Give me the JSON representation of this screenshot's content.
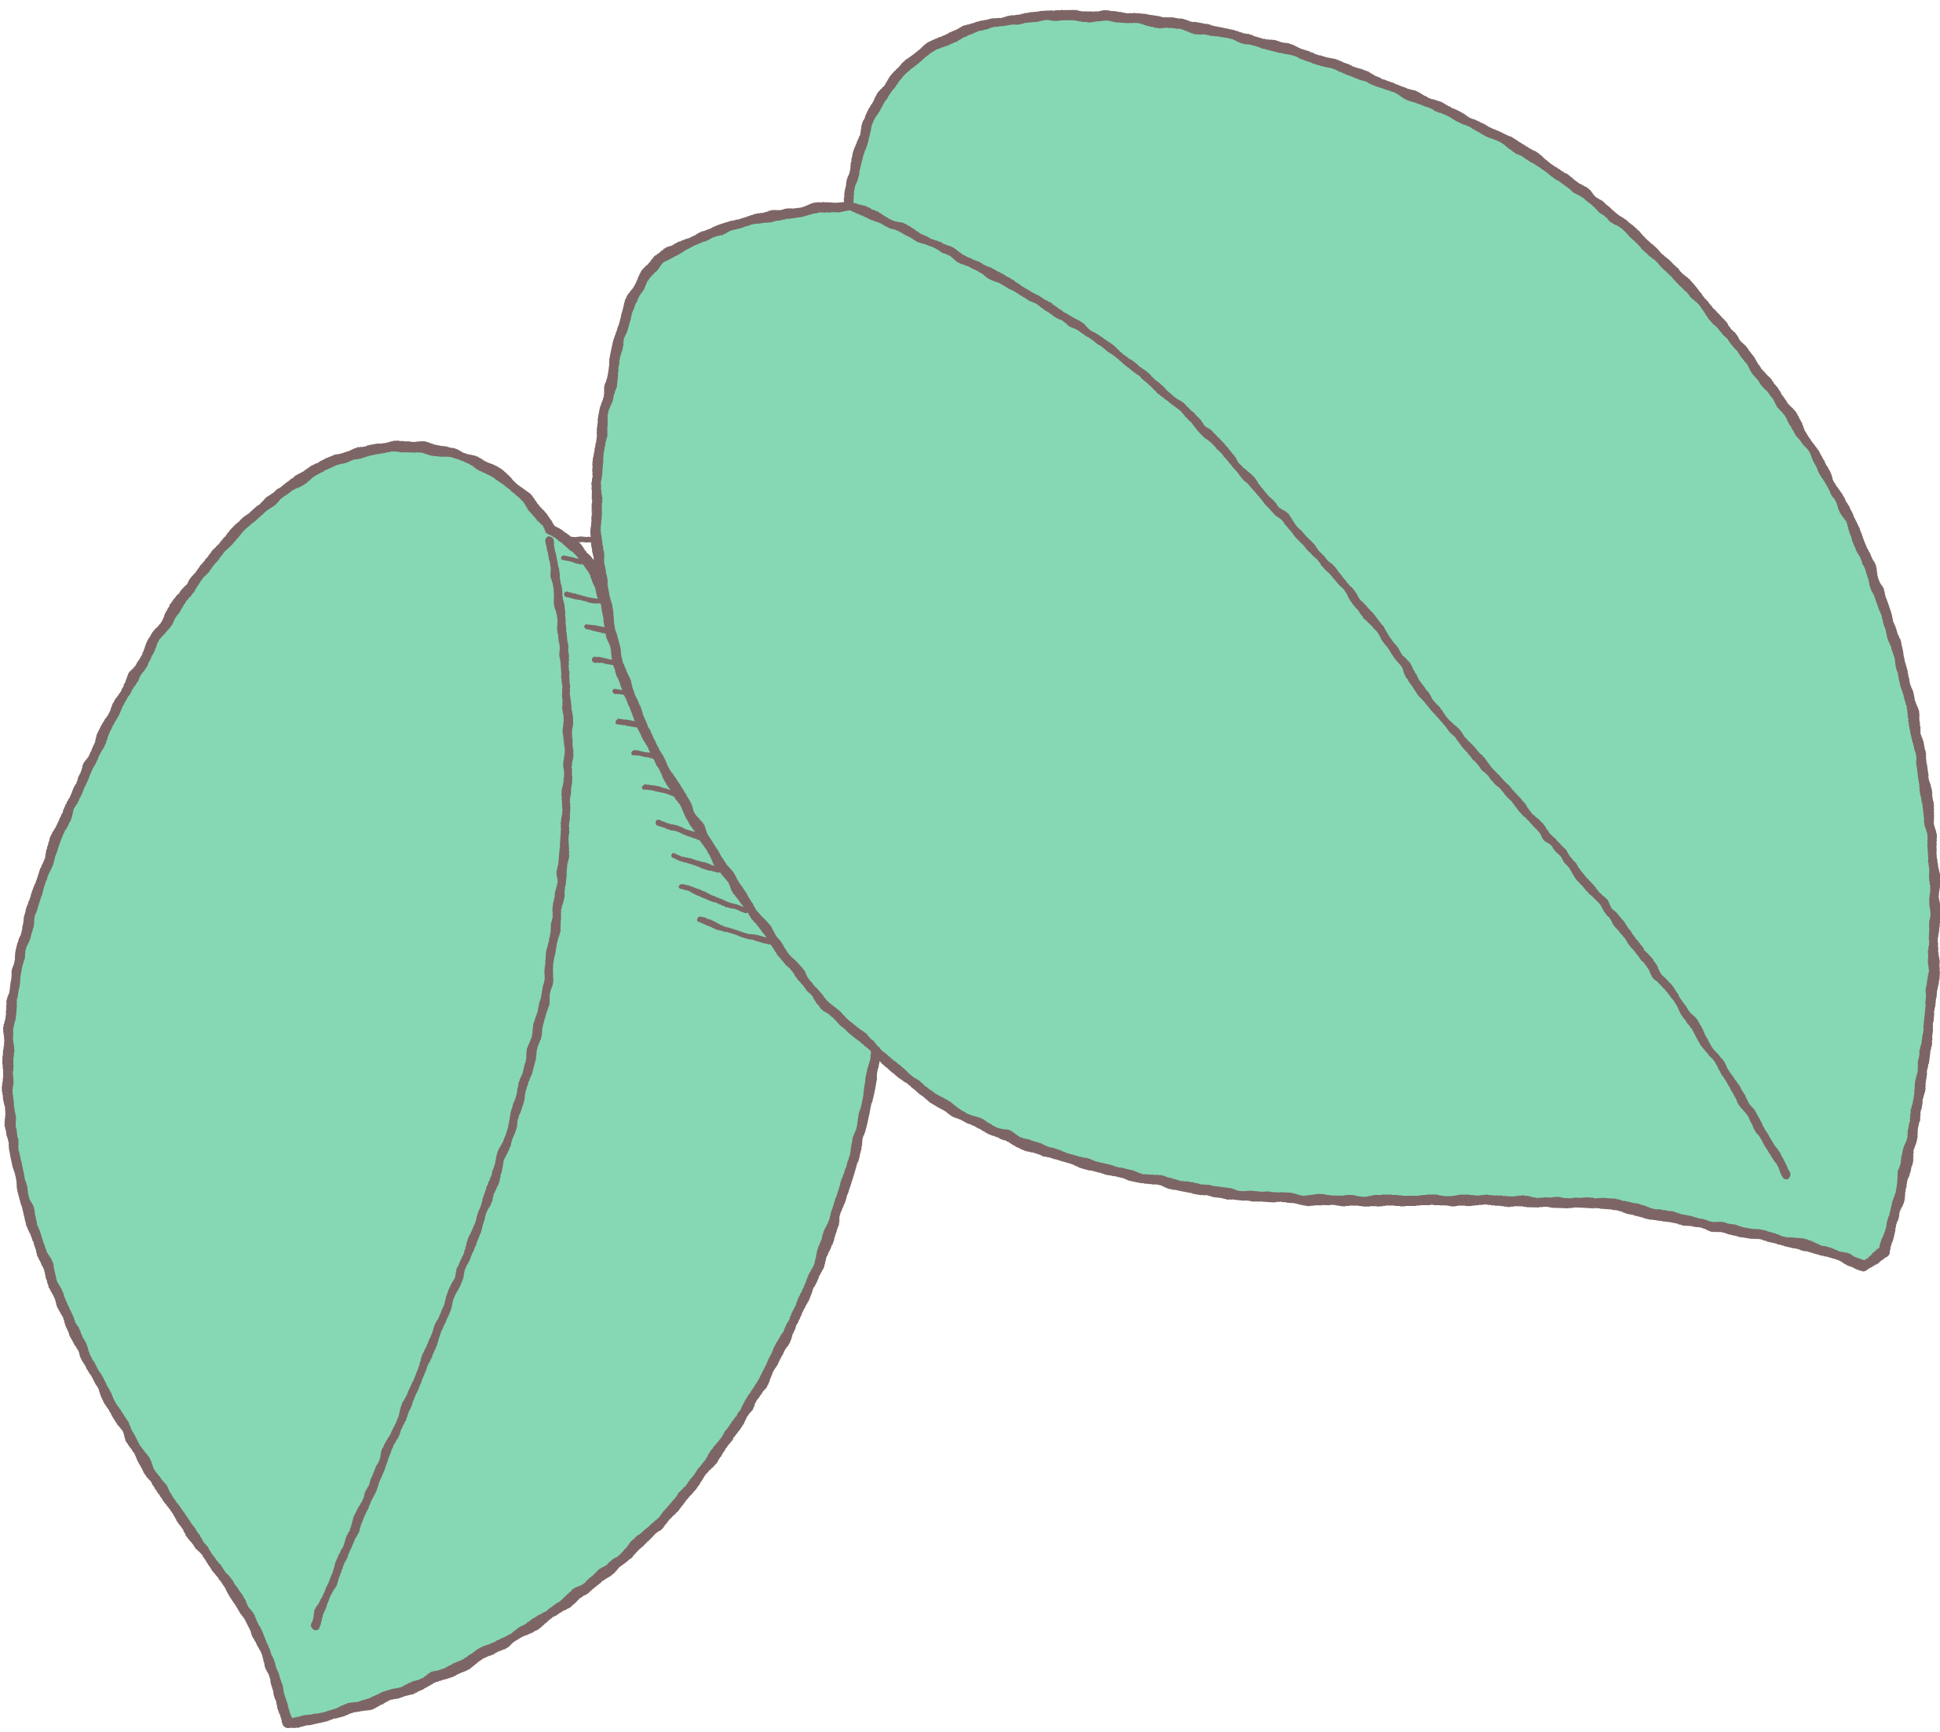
{
  "illustration": {
    "subject": "two-leaves-sketch",
    "colors": {
      "background": "#ffffff",
      "leaf_fill": "#86d8b3",
      "outline": "#7d6566"
    },
    "leaves": [
      {
        "name": "left-leaf",
        "icon": "leaf-icon"
      },
      {
        "name": "right-leaf",
        "icon": "leaf-icon"
      }
    ]
  }
}
